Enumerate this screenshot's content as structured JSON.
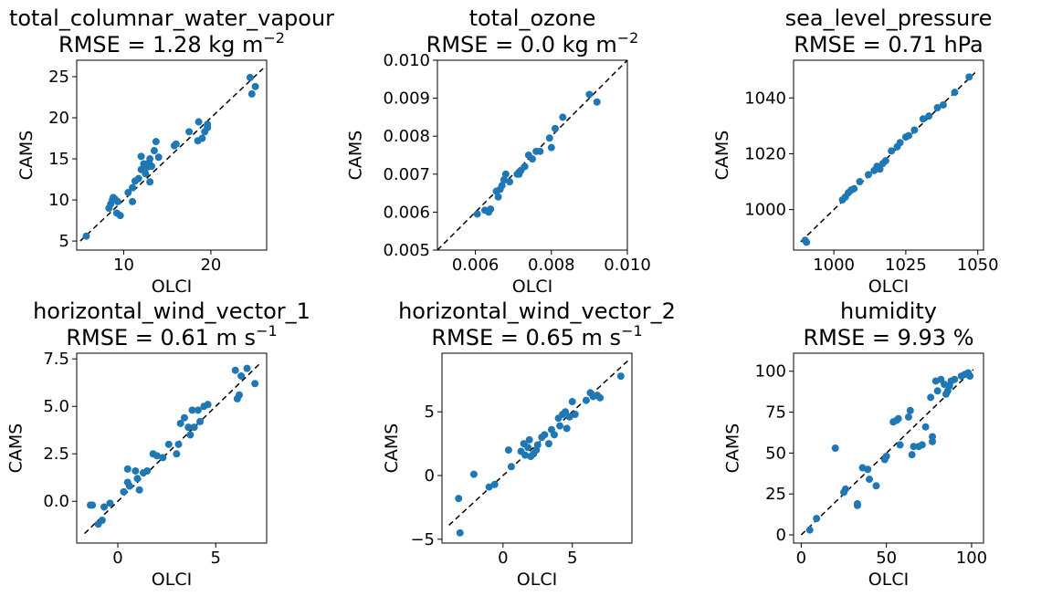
{
  "chart_data": [
    {
      "type": "scatter",
      "title": "total_columnar_water_vapour",
      "subtitle_prefix": "RMSE = 1.28 kg m",
      "subtitle_sup": "−2",
      "xlabel": "OLCI",
      "ylabel": "CAMS",
      "xlim": [
        4.6,
        26.4
      ],
      "ylim": [
        3.9,
        27.0
      ],
      "xticks": [
        {
          "v": 10,
          "label": "10"
        },
        {
          "v": 20,
          "label": "20"
        }
      ],
      "yticks": [
        {
          "v": 5,
          "label": "5"
        },
        {
          "v": 10,
          "label": "10"
        },
        {
          "v": 15,
          "label": "15"
        },
        {
          "v": 20,
          "label": "20"
        },
        {
          "v": 25,
          "label": "25"
        }
      ],
      "reference_line": [
        [
          5.0,
          5.0
        ],
        [
          26.0,
          26.0
        ]
      ],
      "points": [
        [
          5.7,
          5.6
        ],
        [
          8.3,
          9.0
        ],
        [
          8.5,
          9.5
        ],
        [
          8.7,
          10.0
        ],
        [
          8.8,
          10.3
        ],
        [
          9.0,
          10.1
        ],
        [
          9.2,
          8.4
        ],
        [
          9.6,
          8.1
        ],
        [
          9.3,
          9.8
        ],
        [
          10.5,
          10.9
        ],
        [
          11.0,
          9.8
        ],
        [
          11.0,
          11.5
        ],
        [
          11.3,
          12.3
        ],
        [
          11.7,
          12.6
        ],
        [
          12.0,
          13.7
        ],
        [
          12.0,
          15.3
        ],
        [
          12.3,
          14.4
        ],
        [
          12.5,
          13.2
        ],
        [
          12.7,
          14.0
        ],
        [
          12.9,
          14.5
        ],
        [
          13.0,
          12.2
        ],
        [
          13.0,
          15.0
        ],
        [
          13.2,
          14.1
        ],
        [
          13.5,
          16.0
        ],
        [
          13.7,
          17.1
        ],
        [
          14.0,
          15.2
        ],
        [
          15.8,
          16.6
        ],
        [
          16.0,
          16.8
        ],
        [
          17.5,
          18.3
        ],
        [
          18.5,
          17.2
        ],
        [
          18.6,
          19.5
        ],
        [
          19.0,
          17.5
        ],
        [
          19.3,
          18.3
        ],
        [
          19.6,
          18.8
        ],
        [
          19.6,
          19.2
        ],
        [
          24.5,
          24.9
        ],
        [
          24.7,
          22.9
        ],
        [
          25.1,
          23.8
        ]
      ]
    },
    {
      "type": "scatter",
      "title": "total_ozone",
      "subtitle_prefix": "RMSE = 0.0 kg m",
      "subtitle_sup": "−2",
      "xlabel": "OLCI",
      "ylabel": "CAMS",
      "xlim": [
        0.005,
        0.01
      ],
      "ylim": [
        0.005,
        0.01
      ],
      "xticks": [
        {
          "v": 0.006,
          "label": "0.006"
        },
        {
          "v": 0.008,
          "label": "0.008"
        },
        {
          "v": 0.01,
          "label": "0.010"
        }
      ],
      "yticks": [
        {
          "v": 0.005,
          "label": "0.005"
        },
        {
          "v": 0.006,
          "label": "0.006"
        },
        {
          "v": 0.007,
          "label": "0.007"
        },
        {
          "v": 0.008,
          "label": "0.008"
        },
        {
          "v": 0.009,
          "label": "0.009"
        },
        {
          "v": 0.01,
          "label": "0.010"
        }
      ],
      "reference_line": [
        [
          0.005,
          0.005
        ],
        [
          0.01,
          0.01
        ]
      ],
      "points": [
        [
          0.00605,
          0.00595
        ],
        [
          0.00625,
          0.00605
        ],
        [
          0.00635,
          0.006
        ],
        [
          0.0064,
          0.00608
        ],
        [
          0.00655,
          0.00655
        ],
        [
          0.0066,
          0.0064
        ],
        [
          0.00665,
          0.0066
        ],
        [
          0.0067,
          0.0067
        ],
        [
          0.00675,
          0.00685
        ],
        [
          0.0068,
          0.007
        ],
        [
          0.0069,
          0.0068
        ],
        [
          0.0071,
          0.007
        ],
        [
          0.00715,
          0.007
        ],
        [
          0.0072,
          0.0071
        ],
        [
          0.0073,
          0.0072
        ],
        [
          0.0074,
          0.0075
        ],
        [
          0.0075,
          0.0074
        ],
        [
          0.0076,
          0.0076
        ],
        [
          0.0077,
          0.0076
        ],
        [
          0.00795,
          0.00795
        ],
        [
          0.008,
          0.0077
        ],
        [
          0.0081,
          0.0082
        ],
        [
          0.0083,
          0.0085
        ],
        [
          0.009,
          0.0091
        ],
        [
          0.0092,
          0.0089
        ]
      ]
    },
    {
      "type": "scatter",
      "title": "sea_level_pressure",
      "subtitle_prefix": "RMSE = 0.71 hPa",
      "subtitle_sup": "",
      "xlabel": "OLCI",
      "ylabel": "CAMS",
      "xlim": [
        986.0,
        1052.0
      ],
      "ylim": [
        985.5,
        1053.5
      ],
      "xticks": [
        {
          "v": 1000,
          "label": "1000"
        },
        {
          "v": 1025,
          "label": "1025"
        },
        {
          "v": 1050,
          "label": "1050"
        }
      ],
      "yticks": [
        {
          "v": 1000,
          "label": "1000"
        },
        {
          "v": 1020,
          "label": "1020"
        },
        {
          "v": 1040,
          "label": "1040"
        }
      ],
      "reference_line": [
        [
          988.5,
          988.5
        ],
        [
          1050.0,
          1050.0
        ]
      ],
      "points": [
        [
          990.0,
          989.0
        ],
        [
          990.5,
          988.3
        ],
        [
          1003.0,
          1003.5
        ],
        [
          1004.0,
          1004.5
        ],
        [
          1005.0,
          1006.0
        ],
        [
          1006.0,
          1007.0
        ],
        [
          1007.0,
          1007.5
        ],
        [
          1009.0,
          1010.0
        ],
        [
          1012.0,
          1012.5
        ],
        [
          1014.0,
          1014.0
        ],
        [
          1015.0,
          1015.5
        ],
        [
          1016.0,
          1014.5
        ],
        [
          1017.0,
          1016.5
        ],
        [
          1018.0,
          1017.5
        ],
        [
          1020.0,
          1021.0
        ],
        [
          1022.0,
          1022.5
        ],
        [
          1023.0,
          1024.0
        ],
        [
          1025.0,
          1026.0
        ],
        [
          1026.0,
          1026.5
        ],
        [
          1028.0,
          1028.5
        ],
        [
          1031.0,
          1032.5
        ],
        [
          1033.0,
          1033.5
        ],
        [
          1036.0,
          1036.5
        ],
        [
          1038.0,
          1037.5
        ],
        [
          1042.0,
          1042.0
        ],
        [
          1047.0,
          1047.5
        ]
      ]
    },
    {
      "type": "scatter",
      "title": "horizontal_wind_vector_1",
      "subtitle_prefix": "RMSE = 0.61 m s",
      "subtitle_sup": "−1",
      "xlabel": "OLCI",
      "ylabel": "CAMS",
      "xlim": [
        -2.1,
        7.6
      ],
      "ylim": [
        -2.2,
        7.8
      ],
      "xticks": [
        {
          "v": 0,
          "label": "0"
        },
        {
          "v": 5,
          "label": "5"
        }
      ],
      "yticks": [
        {
          "v": 0.0,
          "label": "0.0"
        },
        {
          "v": 2.5,
          "label": "2.5"
        },
        {
          "v": 5.0,
          "label": "5.0"
        },
        {
          "v": 7.5,
          "label": "7.5"
        }
      ],
      "reference_line": [
        [
          -1.7,
          -1.7
        ],
        [
          7.3,
          7.3
        ]
      ],
      "points": [
        [
          -1.4,
          -0.2
        ],
        [
          -1.3,
          -0.2
        ],
        [
          -1.0,
          -1.2
        ],
        [
          -0.8,
          -1.0
        ],
        [
          -0.7,
          -0.3
        ],
        [
          -0.4,
          -0.1
        ],
        [
          0.3,
          0.5
        ],
        [
          0.5,
          1.7
        ],
        [
          0.5,
          1.0
        ],
        [
          0.6,
          0.8
        ],
        [
          0.9,
          1.6
        ],
        [
          1.0,
          1.2
        ],
        [
          1.1,
          0.6
        ],
        [
          1.3,
          1.5
        ],
        [
          1.5,
          1.6
        ],
        [
          1.8,
          2.5
        ],
        [
          2.0,
          2.4
        ],
        [
          2.3,
          2.3
        ],
        [
          2.6,
          3.0
        ],
        [
          3.0,
          2.5
        ],
        [
          3.1,
          3.0
        ],
        [
          3.2,
          4.1
        ],
        [
          3.4,
          4.4
        ],
        [
          3.6,
          3.9
        ],
        [
          3.7,
          3.5
        ],
        [
          3.8,
          4.8
        ],
        [
          3.9,
          3.9
        ],
        [
          4.1,
          4.8
        ],
        [
          4.2,
          4.2
        ],
        [
          4.4,
          5.0
        ],
        [
          4.6,
          5.1
        ],
        [
          6.0,
          6.9
        ],
        [
          6.1,
          5.4
        ],
        [
          6.2,
          5.6
        ],
        [
          6.3,
          6.6
        ],
        [
          6.6,
          7.0
        ],
        [
          7.0,
          6.2
        ]
      ]
    },
    {
      "type": "scatter",
      "title": "horizontal_wind_vector_2",
      "subtitle_prefix": "RMSE = 0.65 m s",
      "subtitle_sup": "−1",
      "xlabel": "OLCI",
      "ylabel": "CAMS",
      "xlim": [
        -4.4,
        9.3
      ],
      "ylim": [
        -5.3,
        9.6
      ],
      "xticks": [
        {
          "v": 0,
          "label": "0"
        },
        {
          "v": 5,
          "label": "5"
        }
      ],
      "yticks": [
        {
          "v": -5,
          "label": "−5"
        },
        {
          "v": 0,
          "label": "0"
        },
        {
          "v": 5,
          "label": "5"
        }
      ],
      "reference_line": [
        [
          -3.9,
          -3.9
        ],
        [
          9.0,
          9.0
        ]
      ],
      "points": [
        [
          -3.2,
          -1.8
        ],
        [
          -3.1,
          -4.5
        ],
        [
          -2.1,
          0.1
        ],
        [
          -1.0,
          -0.9
        ],
        [
          -0.6,
          -0.7
        ],
        [
          0.4,
          2.0
        ],
        [
          0.6,
          0.7
        ],
        [
          1.3,
          1.9
        ],
        [
          1.5,
          2.5
        ],
        [
          1.6,
          1.6
        ],
        [
          1.8,
          2.2
        ],
        [
          1.9,
          2.8
        ],
        [
          2.0,
          1.5
        ],
        [
          2.2,
          1.7
        ],
        [
          2.4,
          2.0
        ],
        [
          2.5,
          2.4
        ],
        [
          2.8,
          3.0
        ],
        [
          3.0,
          3.2
        ],
        [
          3.3,
          2.5
        ],
        [
          3.5,
          3.6
        ],
        [
          3.7,
          3.2
        ],
        [
          4.0,
          4.5
        ],
        [
          4.1,
          3.9
        ],
        [
          4.3,
          4.8
        ],
        [
          4.5,
          5.0
        ],
        [
          4.6,
          3.7
        ],
        [
          4.8,
          4.6
        ],
        [
          5.0,
          5.8
        ],
        [
          5.2,
          4.8
        ],
        [
          6.0,
          5.9
        ],
        [
          6.3,
          6.5
        ],
        [
          6.5,
          6.2
        ],
        [
          6.8,
          6.3
        ],
        [
          7.0,
          6.1
        ],
        [
          8.5,
          7.8
        ]
      ]
    },
    {
      "type": "scatter",
      "title": "humidity",
      "subtitle_prefix": "RMSE = 9.93 %",
      "subtitle_sup": "",
      "xlabel": "OLCI",
      "ylabel": "CAMS",
      "xlim": [
        -4.5,
        107.0
      ],
      "ylim": [
        -5.0,
        111.0
      ],
      "xticks": [
        {
          "v": 0,
          "label": "0"
        },
        {
          "v": 50,
          "label": "50"
        },
        {
          "v": 100,
          "label": "100"
        }
      ],
      "yticks": [
        {
          "v": 0,
          "label": "0"
        },
        {
          "v": 25,
          "label": "25"
        },
        {
          "v": 50,
          "label": "50"
        },
        {
          "v": 75,
          "label": "75"
        },
        {
          "v": 100,
          "label": "100"
        }
      ],
      "reference_line": [
        [
          0.0,
          0.0
        ],
        [
          101.0,
          101.0
        ]
      ],
      "points": [
        [
          5,
          3
        ],
        [
          9,
          10
        ],
        [
          20,
          53
        ],
        [
          25,
          26
        ],
        [
          26,
          28
        ],
        [
          33,
          18
        ],
        [
          33,
          19
        ],
        [
          36,
          41
        ],
        [
          39,
          40
        ],
        [
          40,
          34
        ],
        [
          44,
          30
        ],
        [
          49,
          46
        ],
        [
          50,
          48
        ],
        [
          54,
          69
        ],
        [
          56,
          70
        ],
        [
          57,
          71
        ],
        [
          58,
          55
        ],
        [
          63,
          72
        ],
        [
          64,
          76
        ],
        [
          65,
          49
        ],
        [
          66,
          54
        ],
        [
          69,
          54
        ],
        [
          71,
          55
        ],
        [
          73,
          66
        ],
        [
          76,
          84
        ],
        [
          77,
          60
        ],
        [
          77,
          57
        ],
        [
          79,
          94
        ],
        [
          80,
          88
        ],
        [
          82,
          95
        ],
        [
          84,
          92
        ],
        [
          85,
          86
        ],
        [
          86,
          88
        ],
        [
          87,
          91
        ],
        [
          88,
          94
        ],
        [
          90,
          95
        ],
        [
          94,
          97
        ],
        [
          96,
          98
        ],
        [
          98,
          99
        ],
        [
          99,
          97
        ]
      ]
    }
  ]
}
